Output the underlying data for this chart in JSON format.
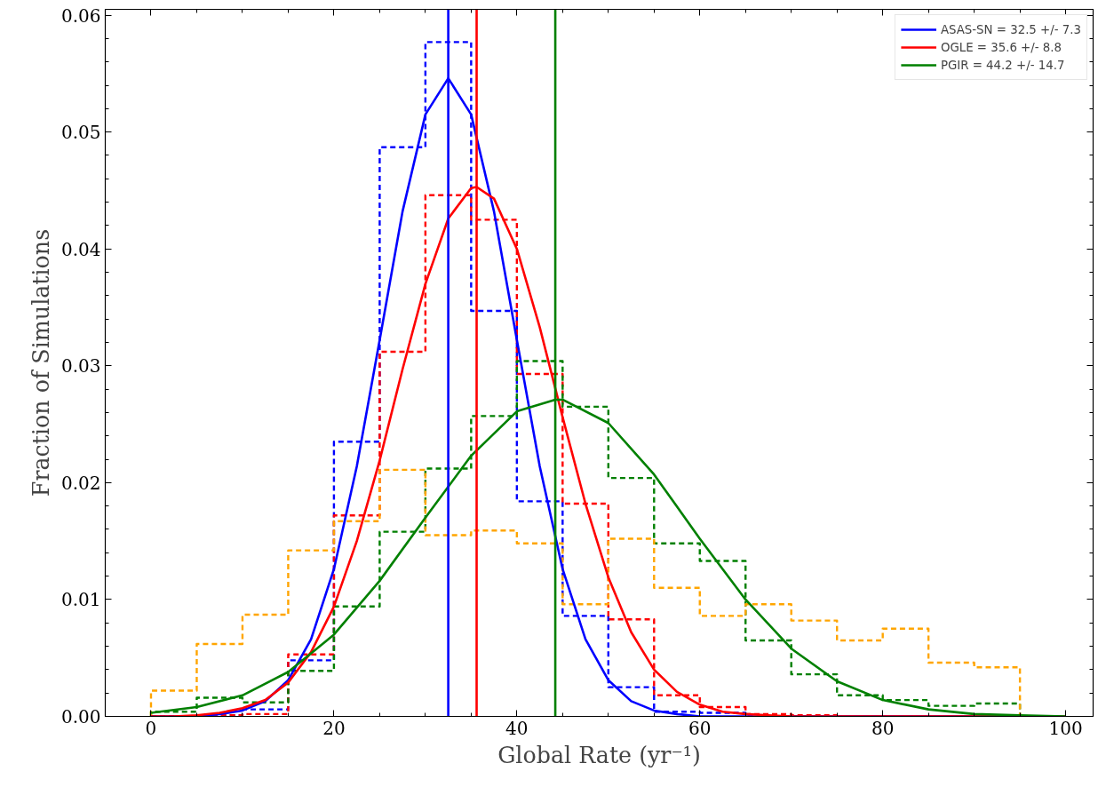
{
  "chart_data": {
    "type": "histogram",
    "xlabel": "Global Rate (yr⁻¹)",
    "ylabel": "Fraction of Simulations",
    "bins": [
      0,
      5,
      10,
      15,
      20,
      25,
      30,
      35,
      40,
      45,
      50,
      55,
      60,
      65,
      70,
      75,
      80,
      85,
      90,
      95
    ],
    "xlim": [
      -5,
      103
    ],
    "ylim": [
      0,
      0.0605
    ],
    "xticks": [
      0,
      {
        "value": 5,
        "label": null
      },
      {
        "value": 10,
        "label": null
      },
      {
        "value": 15,
        "label": null
      },
      20,
      {
        "value": 25,
        "label": null
      },
      {
        "value": 30,
        "label": null
      },
      {
        "value": 35,
        "label": null
      },
      40,
      {
        "value": 45,
        "label": null
      },
      {
        "value": 50,
        "label": null
      },
      {
        "value": 55,
        "label": null
      },
      60,
      {
        "value": 65,
        "label": null
      },
      {
        "value": 70,
        "label": null
      },
      {
        "value": 75,
        "label": null
      },
      80,
      {
        "value": 85,
        "label": null
      },
      {
        "value": 90,
        "label": null
      },
      {
        "value": 95,
        "label": null
      },
      100
    ],
    "yticks": [
      {
        "value": 0,
        "label": "0.00"
      },
      {
        "value": 0.002,
        "label": null
      },
      {
        "value": 0.004,
        "label": null
      },
      {
        "value": 0.006,
        "label": null
      },
      {
        "value": 0.008,
        "label": null
      },
      {
        "value": 0.01,
        "label": "0.01"
      },
      {
        "value": 0.012,
        "label": null
      },
      {
        "value": 0.014,
        "label": null
      },
      {
        "value": 0.016,
        "label": null
      },
      {
        "value": 0.018,
        "label": null
      },
      {
        "value": 0.02,
        "label": "0.02"
      },
      {
        "value": 0.022,
        "label": null
      },
      {
        "value": 0.024,
        "label": null
      },
      {
        "value": 0.026,
        "label": null
      },
      {
        "value": 0.028,
        "label": null
      },
      {
        "value": 0.03,
        "label": "0.03"
      },
      {
        "value": 0.032,
        "label": null
      },
      {
        "value": 0.034,
        "label": null
      },
      {
        "value": 0.036,
        "label": null
      },
      {
        "value": 0.038,
        "label": null
      },
      {
        "value": 0.04,
        "label": "0.04"
      },
      {
        "value": 0.042,
        "label": null
      },
      {
        "value": 0.044,
        "label": null
      },
      {
        "value": 0.046,
        "label": null
      },
      {
        "value": 0.048,
        "label": null
      },
      {
        "value": 0.05,
        "label": "0.05"
      },
      {
        "value": 0.052,
        "label": null
      },
      {
        "value": 0.054,
        "label": null
      },
      {
        "value": 0.056,
        "label": null
      },
      {
        "value": 0.058,
        "label": null
      },
      {
        "value": 0.06,
        "label": "0.06"
      }
    ],
    "grid": false,
    "legend": "top right",
    "series": [
      {
        "color": "#0000fe",
        "line_style": "dashed",
        "values": [
          0,
          0.0001,
          0.0006,
          0.0048,
          0.0235,
          0.0487,
          0.0577,
          0.0347,
          0.0184,
          0.0086,
          0.0025,
          0.0004,
          0.0003,
          0,
          0,
          0,
          0,
          0,
          0
        ]
      },
      {
        "color": "#fe0000",
        "line_style": "dashed",
        "values": [
          0,
          0.0001,
          0.0002,
          0.0053,
          0.0172,
          0.0312,
          0.0446,
          0.0425,
          0.0293,
          0.0182,
          0.0083,
          0.0018,
          0.0008,
          0.0002,
          0.0001,
          0,
          0,
          0,
          0
        ]
      },
      {
        "color": "#017f01",
        "line_style": "dashed",
        "values": [
          0.0004,
          0.0016,
          0.0012,
          0.0039,
          0.0094,
          0.0158,
          0.0212,
          0.0257,
          0.0304,
          0.0265,
          0.0204,
          0.0148,
          0.0133,
          0.0065,
          0.0036,
          0.0018,
          0.0014,
          0.0009,
          0.0011
        ]
      },
      {
        "color": "#ffa500",
        "line_style": "dashed",
        "values": [
          0.0022,
          0.0062,
          0.0087,
          0.0142,
          0.0167,
          0.0211,
          0.0155,
          0.0159,
          0.0148,
          0.0096,
          0.0152,
          0.011,
          0.0086,
          0.0096,
          0.0082,
          0.0065,
          0.0075,
          0.0046,
          0.0042
        ]
      },
      {
        "type": "line",
        "name": "ASAS-SN = 32.5 +/- 7.3",
        "color": "#0000ff",
        "line_style": "solid",
        "x": [
          0,
          2.5,
          5,
          7.5,
          10,
          12.5,
          15,
          17.5,
          20,
          22.5,
          25,
          27.5,
          30,
          32.5,
          35,
          37.5,
          40,
          42.5,
          45,
          47.5,
          50,
          52.5,
          55,
          57.5,
          60,
          62.5,
          65,
          100
        ],
        "values": [
          0,
          0,
          0,
          0.0002,
          0.0005,
          0.0013,
          0.0031,
          0.0066,
          0.0126,
          0.0214,
          0.0322,
          0.0432,
          0.0515,
          0.0546,
          0.0515,
          0.0432,
          0.0322,
          0.0214,
          0.0126,
          0.0066,
          0.0031,
          0.0013,
          0.0005,
          0.0002,
          0,
          0,
          0,
          0
        ]
      },
      {
        "type": "line",
        "name": "OGLE = 35.6 +/- 8.8",
        "color": "#ff0000",
        "line_style": "solid",
        "x": [
          0,
          2.5,
          5,
          7.5,
          10,
          12.5,
          15,
          17.5,
          20,
          22.5,
          25,
          27.5,
          30,
          32.5,
          35,
          35.6,
          37.5,
          40,
          42.5,
          45,
          47.5,
          50,
          52.5,
          55,
          57.5,
          60,
          62.5,
          65,
          67.5,
          70,
          80,
          100
        ],
        "values": [
          0,
          0,
          0.0001,
          0.0003,
          0.0007,
          0.0014,
          0.0029,
          0.0055,
          0.0094,
          0.015,
          0.0219,
          0.0297,
          0.037,
          0.0426,
          0.0452,
          0.0453,
          0.0443,
          0.04,
          0.0333,
          0.0256,
          0.0182,
          0.0119,
          0.0072,
          0.004,
          0.0021,
          0.001,
          0.0004,
          0.0002,
          0.0001,
          0,
          0,
          0
        ]
      },
      {
        "type": "line",
        "name": "PGIR = 44.2 +/- 14.7",
        "color": "#008000",
        "line_style": "solid",
        "x": [
          0,
          5,
          10,
          15,
          20,
          25,
          30,
          35,
          40,
          44.2,
          45,
          50,
          55,
          60,
          65,
          70,
          75,
          80,
          85,
          90,
          95,
          100
        ],
        "values": [
          0.0003,
          0.0008,
          0.0018,
          0.0038,
          0.007,
          0.0116,
          0.017,
          0.0223,
          0.0261,
          0.0271,
          0.0271,
          0.0251,
          0.0207,
          0.0152,
          0.01,
          0.0058,
          0.003,
          0.0014,
          0.0006,
          0.0002,
          0.0001,
          0
        ]
      }
    ],
    "ref_lines": [
      {
        "axis": "x",
        "value": 32.5,
        "color": "#0000ff"
      },
      {
        "axis": "x",
        "value": 35.6,
        "color": "#ff0000"
      },
      {
        "axis": "x",
        "value": 44.2,
        "color": "#008000"
      }
    ]
  }
}
